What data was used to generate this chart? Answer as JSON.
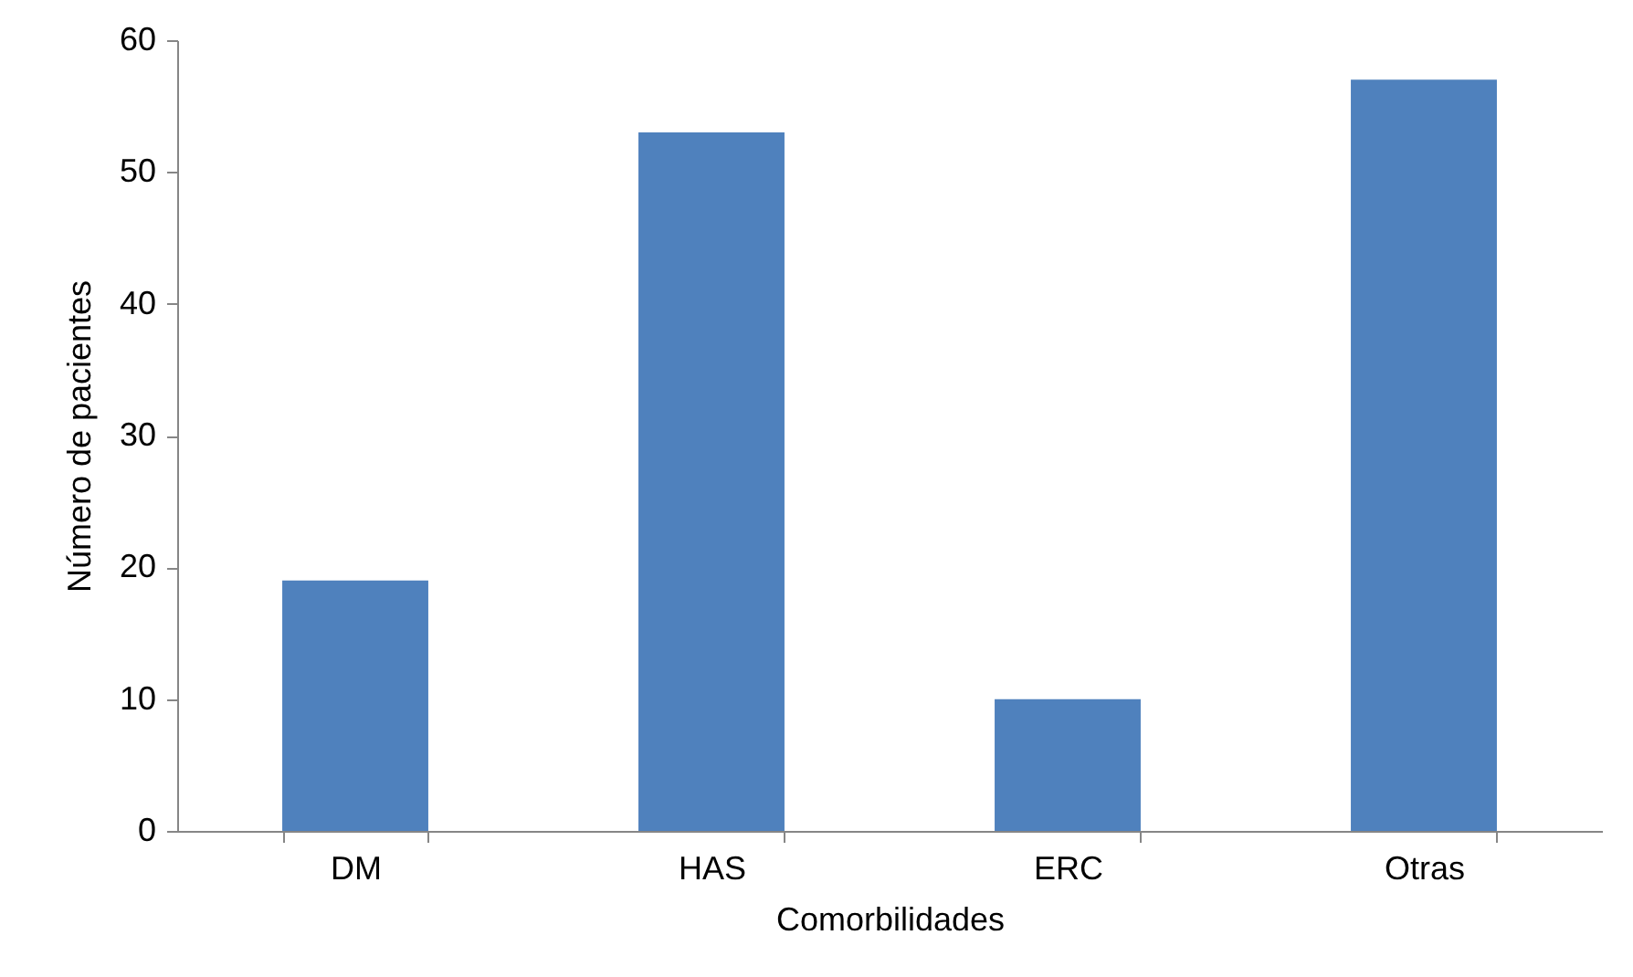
{
  "chart_data": {
    "type": "bar",
    "xlabel": "Comorbilidades",
    "ylabel": "Número de pacientes",
    "categories": [
      "DM",
      "HAS",
      "ERC",
      "Otras"
    ],
    "values": [
      19,
      53,
      10,
      57
    ],
    "color": "#4f81bd",
    "ylim": [
      0,
      60
    ],
    "yticks": [
      0,
      10,
      20,
      30,
      40,
      50,
      60
    ],
    "grid": false
  }
}
